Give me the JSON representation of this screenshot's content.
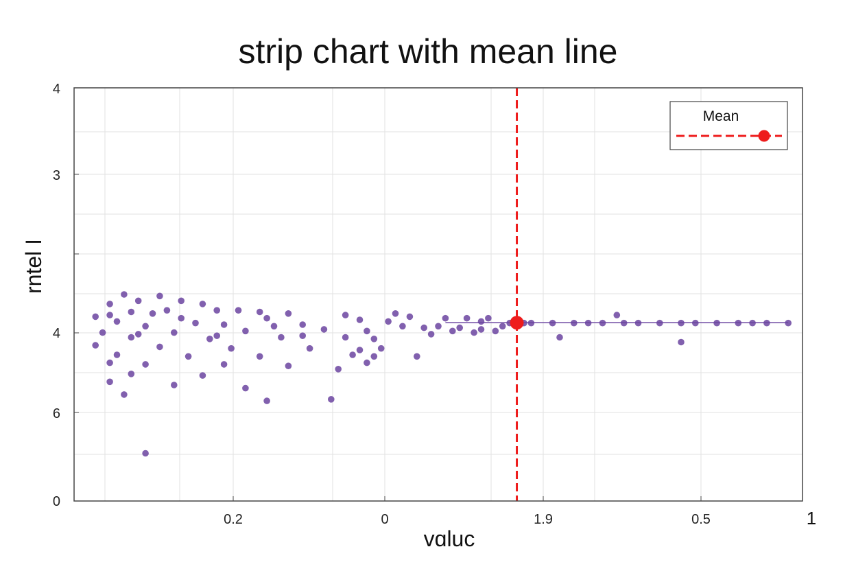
{
  "chart_data": {
    "type": "scatter",
    "title": "strip chart with mean line",
    "xlabel": "vɑluc",
    "ylabel": "rntel I",
    "x_tick_labels": [
      "0.2",
      "0",
      "1.9",
      "0.5"
    ],
    "corner_label": "1",
    "y_tick_labels": [
      "4",
      "3",
      "",
      "4",
      "6",
      "0"
    ],
    "grid": true,
    "legend": {
      "position": "top-right",
      "entries": [
        "Mean"
      ]
    },
    "mean": {
      "label": "Mean",
      "x": 0.6,
      "y": 0.122,
      "color": "#ee1c1c"
    },
    "xlim": [
      -0.02,
      1.0
    ],
    "ylim": [
      -1.0,
      1.6
    ],
    "series": [
      {
        "color": "#6b44a0",
        "points": [
          [
            0.03,
            0.24
          ],
          [
            0.05,
            0.3
          ],
          [
            0.07,
            0.26
          ],
          [
            0.1,
            0.29
          ],
          [
            0.13,
            0.26
          ],
          [
            0.16,
            0.24
          ],
          [
            0.06,
            0.19
          ],
          [
            0.18,
            0.2
          ],
          [
            0.21,
            0.2
          ],
          [
            0.09,
            0.18
          ],
          [
            0.24,
            0.19
          ],
          [
            0.03,
            0.17
          ],
          [
            0.11,
            0.2
          ],
          [
            0.28,
            0.18
          ],
          [
            0.04,
            0.13
          ],
          [
            0.15,
            0.12
          ],
          [
            0.08,
            0.1
          ],
          [
            0.19,
            0.11
          ],
          [
            0.26,
            0.1
          ],
          [
            0.3,
            0.11
          ],
          [
            0.02,
            0.06
          ],
          [
            0.12,
            0.06
          ],
          [
            0.22,
            0.07
          ],
          [
            0.33,
            0.08
          ],
          [
            0.06,
            0.03
          ],
          [
            0.17,
            0.02
          ],
          [
            0.27,
            0.03
          ],
          [
            0.36,
            0.03
          ],
          [
            0.01,
            -0.02
          ],
          [
            0.1,
            -0.03
          ],
          [
            0.2,
            -0.04
          ],
          [
            0.31,
            -0.04
          ],
          [
            0.04,
            -0.08
          ],
          [
            0.14,
            -0.09
          ],
          [
            0.24,
            -0.09
          ],
          [
            0.03,
            -0.13
          ],
          [
            0.08,
            -0.14
          ],
          [
            0.19,
            -0.14
          ],
          [
            0.28,
            -0.15
          ],
          [
            0.35,
            -0.17
          ],
          [
            0.06,
            -0.2
          ],
          [
            0.16,
            -0.21
          ],
          [
            0.03,
            -0.25
          ],
          [
            0.12,
            -0.27
          ],
          [
            0.22,
            -0.29
          ],
          [
            0.05,
            -0.33
          ],
          [
            0.25,
            -0.37
          ],
          [
            0.34,
            -0.36
          ],
          [
            0.08,
            -0.7
          ],
          [
            0.01,
            0.16
          ],
          [
            0.13,
            0.15
          ],
          [
            0.25,
            0.15
          ],
          [
            0.38,
            0.14
          ],
          [
            0.07,
            0.05
          ],
          [
            0.18,
            0.04
          ],
          [
            0.3,
            0.04
          ],
          [
            0.39,
            0.07
          ],
          [
            0.42,
            0.13
          ],
          [
            0.45,
            0.16
          ],
          [
            0.44,
            0.1
          ],
          [
            0.47,
            0.09
          ],
          [
            0.4,
            0.02
          ],
          [
            0.48,
            0.05
          ],
          [
            0.36,
            0.17
          ],
          [
            0.43,
            0.18
          ],
          [
            0.38,
            -0.05
          ],
          [
            0.41,
            -0.04
          ],
          [
            0.37,
            -0.08
          ],
          [
            0.4,
            -0.09
          ],
          [
            0.46,
            -0.09
          ],
          [
            0.39,
            -0.13
          ],
          [
            0.5,
            0.15
          ],
          [
            0.53,
            0.15
          ],
          [
            0.56,
            0.15
          ],
          [
            0.55,
            0.13
          ],
          [
            0.59,
            0.12
          ],
          [
            0.61,
            0.12
          ],
          [
            0.62,
            0.12
          ],
          [
            0.65,
            0.12
          ],
          [
            0.68,
            0.12
          ],
          [
            0.7,
            0.12
          ],
          [
            0.72,
            0.12
          ],
          [
            0.75,
            0.12
          ],
          [
            0.77,
            0.12
          ],
          [
            0.8,
            0.12
          ],
          [
            0.83,
            0.12
          ],
          [
            0.85,
            0.12
          ],
          [
            0.88,
            0.12
          ],
          [
            0.91,
            0.12
          ],
          [
            0.93,
            0.12
          ],
          [
            0.95,
            0.12
          ],
          [
            0.98,
            0.12
          ],
          [
            0.51,
            0.07
          ],
          [
            0.54,
            0.06
          ],
          [
            0.57,
            0.07
          ],
          [
            0.49,
            0.1
          ],
          [
            0.52,
            0.09
          ],
          [
            0.55,
            0.08
          ],
          [
            0.58,
            0.1
          ],
          [
            0.66,
            0.03
          ],
          [
            0.74,
            0.17
          ],
          [
            0.83,
            0.0
          ]
        ]
      }
    ]
  }
}
